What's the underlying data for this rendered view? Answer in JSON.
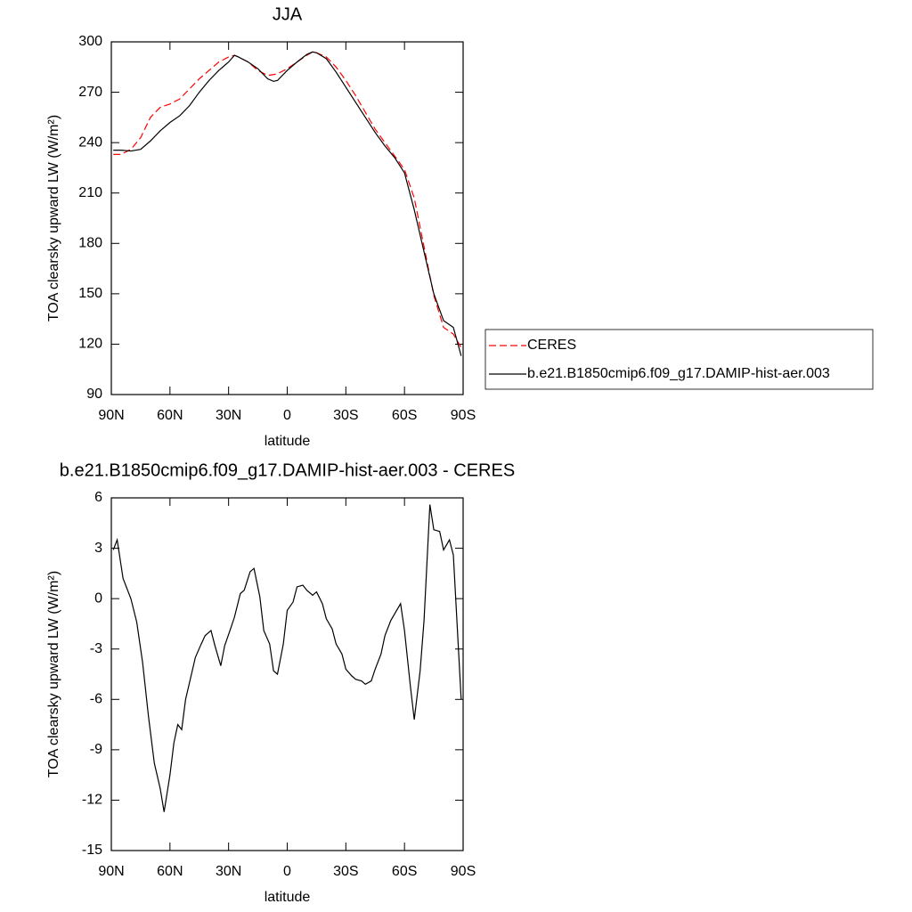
{
  "chart_data": [
    {
      "type": "line",
      "title": "JJA",
      "xlabel": "latitude",
      "ylabel": "TOA clearsky upward LW (W/m²)",
      "x": [
        89,
        85,
        80,
        75,
        70,
        65,
        60,
        55,
        50,
        45,
        40,
        35,
        30,
        27,
        25,
        20,
        15,
        10,
        7,
        5,
        0,
        -5,
        -10,
        -13,
        -15,
        -20,
        -25,
        -30,
        -35,
        -40,
        -45,
        -50,
        -55,
        -60,
        -65,
        -70,
        -75,
        -80,
        -85,
        -89
      ],
      "series": [
        {
          "name": "CERES",
          "color": "#ff0000",
          "linestyle": "dashed",
          "values": [
            233,
            233,
            236,
            243,
            255,
            261,
            263,
            266,
            272,
            278,
            283,
            288,
            291,
            292,
            291,
            288,
            283,
            280,
            280.5,
            281,
            284,
            288,
            292,
            294,
            293.5,
            291,
            285,
            277,
            268,
            258,
            248,
            240,
            232,
            224,
            207,
            178,
            149,
            130,
            126,
            118
          ]
        },
        {
          "name": "b.e21.B1850cmip6.f09_g17.DAMIP-hist-aer.003",
          "color": "#000000",
          "linestyle": "solid",
          "values": [
            235.5,
            235.5,
            235,
            236,
            241,
            247,
            252,
            256,
            262,
            270,
            277,
            283,
            288,
            292,
            291,
            288,
            284,
            278,
            276.5,
            277,
            283,
            288,
            292.5,
            294,
            293.5,
            290,
            282,
            273,
            264,
            255,
            246,
            238,
            231,
            222,
            200,
            175,
            150,
            134,
            130,
            113
          ]
        }
      ],
      "xlim": [
        90,
        -90
      ],
      "xticks": [
        {
          "value": 90,
          "label": "90N"
        },
        {
          "value": 60,
          "label": "60N"
        },
        {
          "value": 30,
          "label": "30N"
        },
        0,
        {
          "value": -30,
          "label": "30S"
        },
        {
          "value": -60,
          "label": "60S"
        },
        {
          "value": -90,
          "label": "90S"
        }
      ],
      "ylim": [
        90,
        300
      ],
      "yticks": [
        90,
        120,
        150,
        180,
        210,
        240,
        270,
        300
      ],
      "legend": "right"
    },
    {
      "type": "line",
      "title": "b.e21.B1850cmip6.f09_g17.DAMIP-hist-aer.003 - CERES",
      "xlabel": "latitude",
      "ylabel": "TOA clearsky upward LW (W/m²)",
      "x": [
        89,
        87,
        84,
        80,
        77,
        74,
        71,
        68,
        65,
        63,
        60,
        58,
        56,
        54,
        52,
        49,
        47,
        44,
        42,
        39,
        37,
        34,
        32,
        29,
        27,
        24,
        22,
        19,
        17,
        14,
        12,
        9,
        7,
        5,
        2,
        0,
        -3,
        -5,
        -8,
        -10,
        -13,
        -15,
        -18,
        -20,
        -23,
        -25,
        -28,
        -30,
        -33,
        -35,
        -38,
        -40,
        -43,
        -45,
        -48,
        -50,
        -53,
        -55,
        -58,
        -60,
        -63,
        -65,
        -68,
        -70,
        -73,
        -75,
        -78,
        -80,
        -83,
        -85,
        -89
      ],
      "series": [
        {
          "color": "#000000",
          "linestyle": "solid",
          "values": [
            2.9,
            3.5,
            1.2,
            0,
            -1.4,
            -3.8,
            -7,
            -9.8,
            -11.3,
            -12.7,
            -10.5,
            -8.6,
            -7.5,
            -7.8,
            -6,
            -4.5,
            -3.5,
            -2.7,
            -2.2,
            -1.9,
            -2.8,
            -4,
            -2.8,
            -1.8,
            -1.1,
            0.3,
            0.5,
            1.6,
            1.8,
            0.1,
            -1.9,
            -2.7,
            -4.3,
            -4.5,
            -2.7,
            -0.7,
            -0.2,
            0.7,
            0.8,
            0.5,
            0.2,
            0.4,
            -0.3,
            -1.2,
            -1.8,
            -2.7,
            -3.3,
            -4.2,
            -4.6,
            -4.8,
            -4.9,
            -5.1,
            -4.9,
            -4.2,
            -3.3,
            -2.2,
            -1.3,
            -0.9,
            -0.3,
            -1.9,
            -5.2,
            -7.2,
            -4.3,
            -1.3,
            5.6,
            4.1,
            4,
            2.9,
            3.5,
            2.6,
            -6
          ]
        }
      ],
      "xlim": [
        90,
        -90
      ],
      "xticks": [
        {
          "value": 90,
          "label": "90N"
        },
        {
          "value": 60,
          "label": "60N"
        },
        {
          "value": 30,
          "label": "30N"
        },
        0,
        {
          "value": -30,
          "label": "30S"
        },
        {
          "value": -60,
          "label": "60S"
        },
        {
          "value": -90,
          "label": "90S"
        }
      ],
      "ylim": [
        -15,
        6
      ],
      "yticks": [
        -15,
        -12,
        -9,
        -6,
        -3,
        0,
        3,
        6
      ]
    }
  ]
}
